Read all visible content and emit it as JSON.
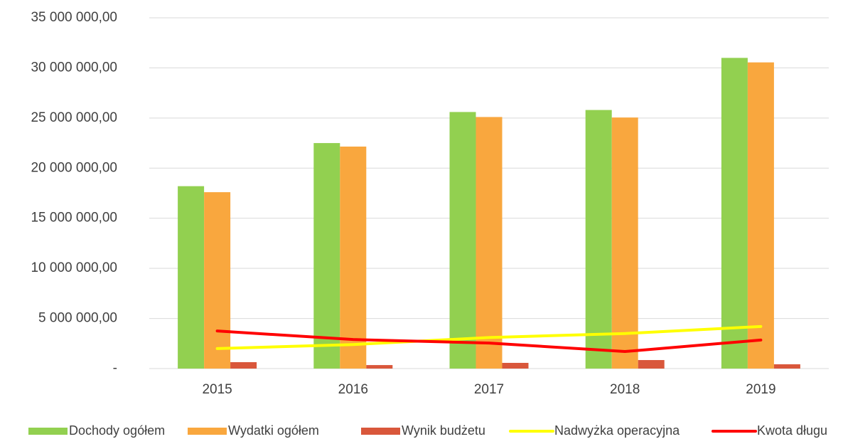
{
  "chart_data": {
    "type": "bar",
    "categories": [
      "2015",
      "2016",
      "2017",
      "2018",
      "2019"
    ],
    "series": [
      {
        "name": "Dochody ogółem",
        "color": "#92d050",
        "values": [
          18200000,
          22500000,
          25600000,
          25800000,
          31000000
        ]
      },
      {
        "name": "Wydatki ogółem",
        "color": "#f9a73e",
        "values": [
          17600000,
          22150000,
          25100000,
          25050000,
          30550000
        ]
      },
      {
        "name": "Wynik budżetu",
        "color": "#d9573b",
        "values": [
          640000,
          350000,
          570000,
          850000,
          430000
        ]
      },
      {
        "name": "Nadwyżka operacyjna",
        "color": "#ffff00",
        "type": "line",
        "values": [
          2000000,
          2400000,
          3100000,
          3500000,
          4200000
        ]
      },
      {
        "name": "Kwota długu",
        "color": "#ff0000",
        "type": "line",
        "values": [
          3750000,
          2900000,
          2550000,
          1700000,
          2850000
        ]
      }
    ],
    "ylim": [
      0,
      35000000
    ],
    "yticks": [
      {
        "value": 0,
        "label": "-"
      },
      {
        "value": 5000000,
        "label": "5 000 000,00"
      },
      {
        "value": 10000000,
        "label": "10 000 000,00"
      },
      {
        "value": 15000000,
        "label": "15 000 000,00"
      },
      {
        "value": 20000000,
        "label": "20 000 000,00"
      },
      {
        "value": 25000000,
        "label": "25 000 000,00"
      },
      {
        "value": 30000000,
        "label": "30 000 000,00"
      },
      {
        "value": 35000000,
        "label": "35 000 000,00"
      }
    ],
    "grid": true,
    "legend": "bottom"
  }
}
